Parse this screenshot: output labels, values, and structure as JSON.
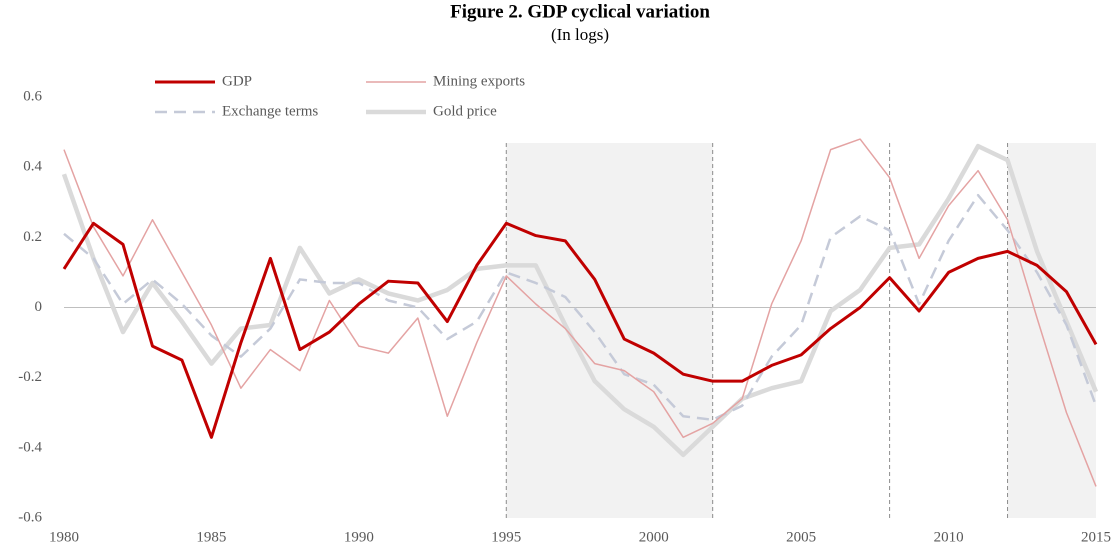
{
  "chart_data": {
    "type": "line",
    "title": "Figure 2. GDP cyclical variation",
    "subtitle": "(In logs)",
    "x": [
      1980,
      1981,
      1982,
      1983,
      1984,
      1985,
      1986,
      1987,
      1988,
      1989,
      1990,
      1991,
      1992,
      1993,
      1994,
      1995,
      1996,
      1997,
      1998,
      1999,
      2000,
      2001,
      2002,
      2003,
      2004,
      2005,
      2006,
      2007,
      2008,
      2009,
      2010,
      2011,
      2012,
      2013,
      2014,
      2015
    ],
    "series": [
      {
        "name": "GDP",
        "color": "#c00000",
        "width": 3,
        "dashed": false,
        "values": [
          0.11,
          0.24,
          0.18,
          -0.11,
          -0.15,
          -0.37,
          -0.1,
          0.14,
          -0.12,
          -0.07,
          0.01,
          0.075,
          0.07,
          -0.04,
          0.12,
          0.24,
          0.205,
          0.19,
          0.08,
          -0.09,
          -0.13,
          -0.19,
          -0.21,
          -0.21,
          -0.165,
          -0.135,
          -0.06,
          0.0,
          0.085,
          -0.01,
          0.1,
          0.14,
          0.16,
          0.12,
          0.045,
          -0.105
        ]
      },
      {
        "name": "Mining exports",
        "color": "#e4a3a3",
        "width": 1.5,
        "dashed": false,
        "values": [
          0.45,
          0.23,
          0.09,
          0.25,
          0.1,
          -0.05,
          -0.23,
          -0.12,
          -0.18,
          0.02,
          -0.11,
          -0.13,
          -0.03,
          -0.31,
          -0.1,
          0.09,
          0.01,
          -0.06,
          -0.16,
          -0.18,
          -0.24,
          -0.37,
          -0.33,
          -0.26,
          0.01,
          0.19,
          0.45,
          0.48,
          0.37,
          0.14,
          0.29,
          0.39,
          0.25,
          -0.03,
          -0.3,
          -0.51
        ]
      },
      {
        "name": "Exchange terms",
        "color": "#c5cad8",
        "width": 2.5,
        "dashed": true,
        "values": [
          0.21,
          0.14,
          0.01,
          0.08,
          0.01,
          -0.08,
          -0.14,
          -0.06,
          0.08,
          0.07,
          0.07,
          0.02,
          0.0,
          -0.09,
          -0.04,
          0.1,
          0.07,
          0.03,
          -0.07,
          -0.19,
          -0.22,
          -0.31,
          -0.32,
          -0.28,
          -0.14,
          -0.05,
          0.2,
          0.26,
          0.22,
          0.01,
          0.19,
          0.32,
          0.22,
          0.1,
          -0.05,
          -0.28
        ]
      },
      {
        "name": "Gold price",
        "color": "#dadada",
        "width": 4.5,
        "dashed": false,
        "values": [
          0.38,
          0.14,
          -0.07,
          0.07,
          -0.04,
          -0.16,
          -0.06,
          -0.05,
          0.17,
          0.04,
          0.08,
          0.04,
          0.02,
          0.05,
          0.11,
          0.12,
          0.12,
          -0.05,
          -0.21,
          -0.29,
          -0.34,
          -0.42,
          -0.34,
          -0.26,
          -0.23,
          -0.21,
          -0.01,
          0.05,
          0.17,
          0.18,
          0.31,
          0.46,
          0.42,
          0.16,
          -0.04,
          -0.24
        ]
      }
    ],
    "xlim": [
      1980,
      2015
    ],
    "xticks": [
      1980,
      1985,
      1990,
      1995,
      2000,
      2005,
      2010,
      2015
    ],
    "ylim": [
      -0.6,
      0.6
    ],
    "yticks": [
      -0.6,
      -0.4,
      -0.2,
      0,
      0.2,
      0.4,
      0.6
    ],
    "shaded_regions": [
      [
        1995,
        2002
      ],
      [
        2012,
        2015
      ]
    ],
    "vlines": [
      1995,
      2002,
      2008,
      2012
    ]
  }
}
